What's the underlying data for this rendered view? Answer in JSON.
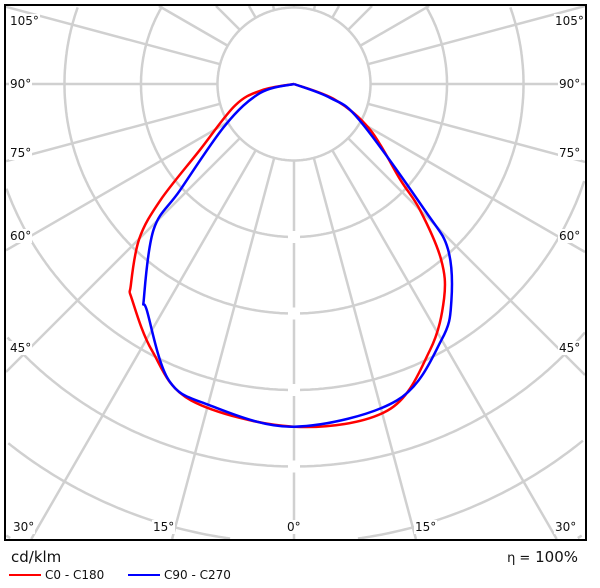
{
  "chart_data": {
    "type": "polar",
    "angle_labels": {
      "left": [
        "105°",
        "90°",
        "75°",
        "60°",
        "45°",
        "30°"
      ],
      "bottom": [
        "15°",
        "0°",
        "15°"
      ],
      "right": [
        "105°",
        "90°",
        "75°",
        "60°",
        "45°",
        "30°"
      ]
    },
    "spoke_step_deg": 15,
    "radial_unit": "cd/klm",
    "radial_ticks_labeled": false,
    "grid": true,
    "efficiency_label": "η = 100%",
    "efficiency_symbol": "η =",
    "efficiency_value": "100%",
    "angle_convention": "gamma in degrees, negative = left half (C180/C270), positive = right half (C0/C90); radius in grid-ring units",
    "series": [
      {
        "name": "C0 - C180",
        "color": "#ff0000",
        "points": [
          [
            -90,
            0
          ],
          [
            -79,
            0.43
          ],
          [
            -70,
            0.82
          ],
          [
            -55,
            1.5
          ],
          [
            -49,
            2.31
          ],
          [
            -45,
            2.86
          ],
          [
            -39,
            3.39
          ],
          [
            -37,
            3.52
          ],
          [
            -28,
            3.95
          ],
          [
            -18,
            4.35
          ],
          [
            0,
            4.48
          ],
          [
            16,
            4.44
          ],
          [
            27,
            3.91
          ],
          [
            35,
            3.42
          ],
          [
            40,
            2.99
          ],
          [
            45,
            2.33
          ],
          [
            48,
            1.87
          ],
          [
            59,
            1.16
          ],
          [
            69,
            0.58
          ],
          [
            90,
            0
          ]
        ]
      },
      {
        "name": "C90 - C270",
        "color": "#0000ff",
        "points": [
          [
            -90,
            0
          ],
          [
            -75,
            0.46
          ],
          [
            -59,
            1.05
          ],
          [
            -47,
            2.04
          ],
          [
            -44,
            2.64
          ],
          [
            -35,
            3.42
          ],
          [
            -33,
            3.53
          ],
          [
            -23,
            4.2
          ],
          [
            -15,
            4.34
          ],
          [
            0,
            4.48
          ],
          [
            18,
            4.35
          ],
          [
            30,
            3.86
          ],
          [
            36,
            3.5
          ],
          [
            43,
            2.95
          ],
          [
            46,
            2.38
          ],
          [
            61,
            0.98
          ],
          [
            69,
            0.51
          ],
          [
            90,
            0
          ]
        ]
      }
    ]
  }
}
